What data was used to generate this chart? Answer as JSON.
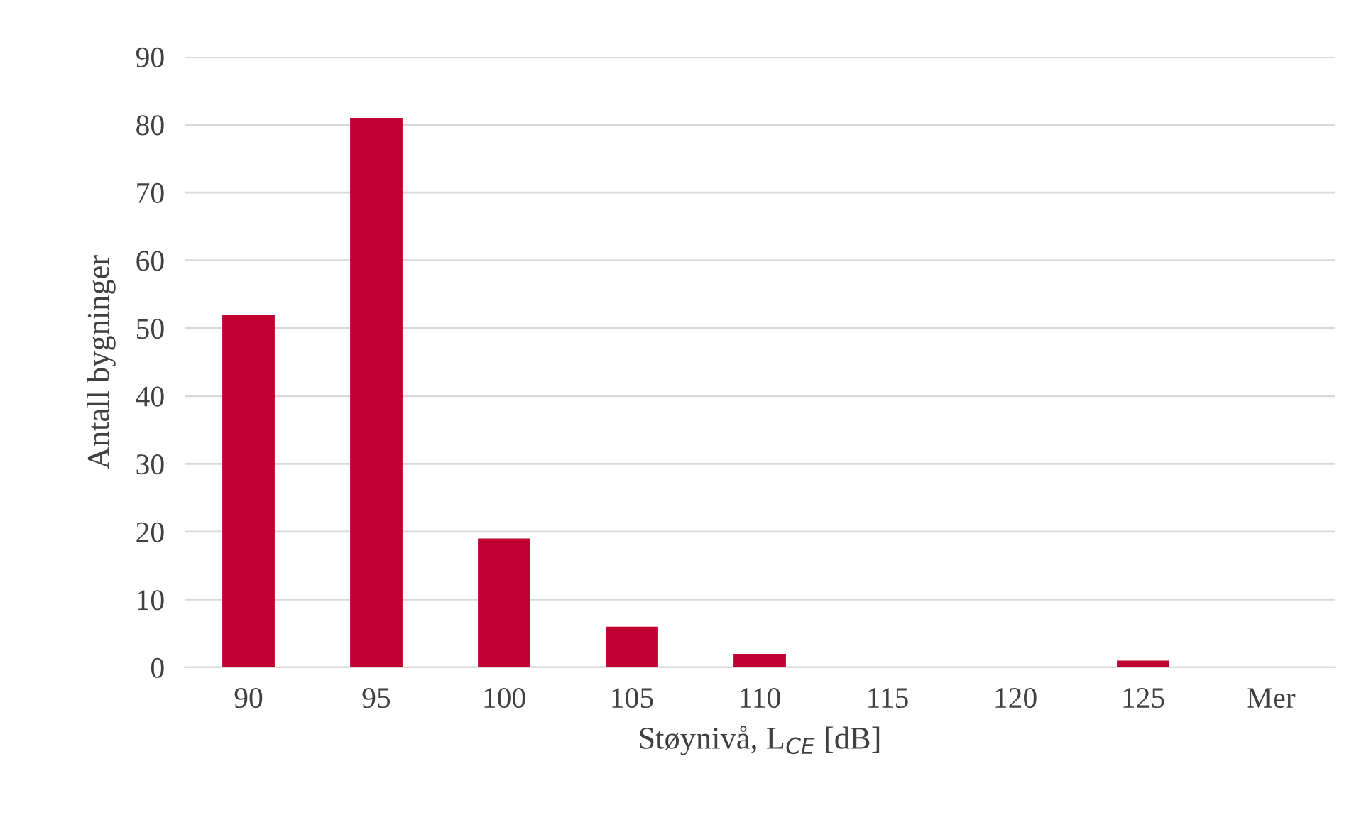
{
  "chart_data": {
    "type": "bar",
    "xlabel": "Støynivå, L$_{CE}$ [dB]",
    "ylabel": "Antall bygninger",
    "categories": [
      "90",
      "95",
      "100",
      "105",
      "110",
      "115",
      "120",
      "125",
      "Mer"
    ],
    "values": [
      52,
      81,
      19,
      6,
      2,
      0,
      0,
      1,
      0
    ],
    "color": "#c00030",
    "ylim": [
      0,
      90
    ],
    "yticks": [
      0,
      10,
      20,
      30,
      40,
      50,
      60,
      70,
      80,
      90
    ],
    "grid": "y",
    "legend": false
  }
}
